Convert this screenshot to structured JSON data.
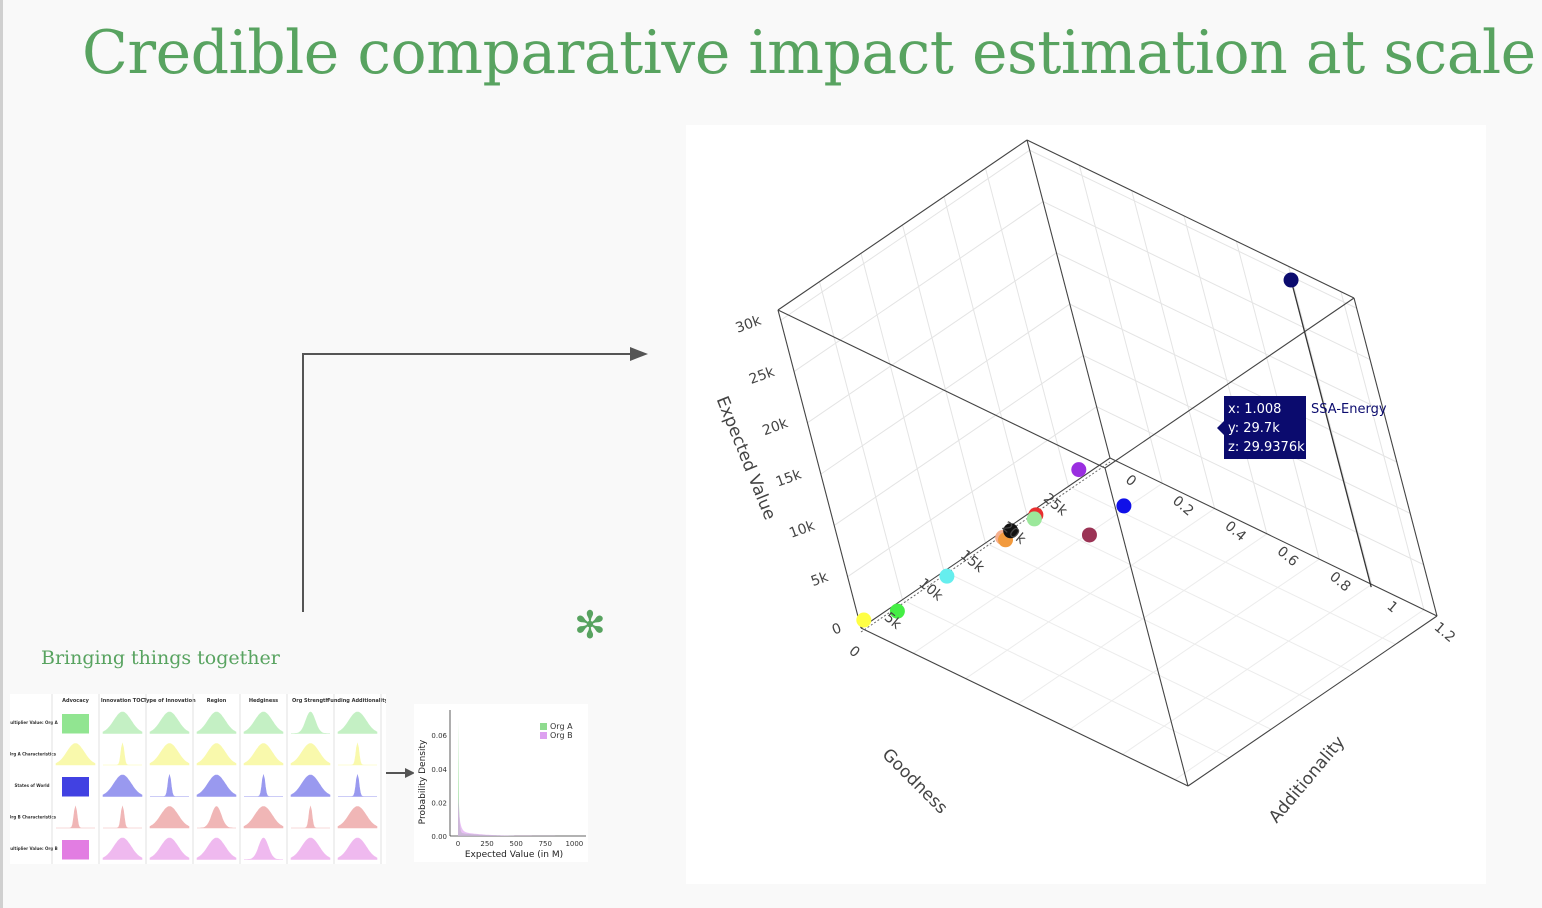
{
  "slide": {
    "title": "Credible comparative impact estimation at scale",
    "subtitle": "Bringing things together",
    "asterisk_glyph": "✻"
  },
  "chart_data": [
    {
      "type": "scatter3d",
      "xlabel": "Additionality",
      "ylabel": "Goodness",
      "zlabel": "Expected Value",
      "x_ticks": [
        "0",
        "0.2",
        "0.4",
        "0.6",
        "0.8",
        "1",
        "1.2"
      ],
      "y_ticks": [
        "0",
        "5k",
        "10k",
        "15k",
        "20k",
        "25k"
      ],
      "z_ticks": [
        "0",
        "5k",
        "10k",
        "15k",
        "20k",
        "25k",
        "30k"
      ],
      "xlim": [
        0,
        1.25
      ],
      "ylim": [
        0,
        30000
      ],
      "zlim": [
        0,
        31000
      ],
      "points": [
        {
          "name": "yellow",
          "color": "#ffff44",
          "x": 0.0,
          "y": 500,
          "z": 500
        },
        {
          "name": "green",
          "color": "#44ee44",
          "x": 0.05,
          "y": 3000,
          "z": 600
        },
        {
          "name": "cyan",
          "color": "#66eeee",
          "x": 0.05,
          "y": 9000,
          "z": 700
        },
        {
          "name": "peach",
          "color": "#f5b08f",
          "x": 0.06,
          "y": 15500,
          "z": 1000
        },
        {
          "name": "orange",
          "color": "#f29a3d",
          "x": 0.07,
          "y": 15500,
          "z": 900
        },
        {
          "name": "black",
          "color": "#111111",
          "x": 0.06,
          "y": 16500,
          "z": 1100
        },
        {
          "name": "red",
          "color": "#e83030",
          "x": 0.06,
          "y": 19500,
          "z": 1000
        },
        {
          "name": "light green",
          "color": "#9be89b",
          "x": 0.07,
          "y": 19000,
          "z": 1000
        },
        {
          "name": "purple",
          "color": "#9a2ee0",
          "x": 0.0,
          "y": 26500,
          "z": 800
        },
        {
          "name": "maroon",
          "color": "#9b3355",
          "x": 0.25,
          "y": 20000,
          "z": 1100
        },
        {
          "name": "blue",
          "color": "#1010e8",
          "x": 0.22,
          "y": 25000,
          "z": 800
        },
        {
          "name": "SSA-Energy",
          "color": "#0b0b6e",
          "x": 1.008,
          "y": 29700,
          "z": 29937.6
        }
      ],
      "tooltip": {
        "x_label": "x: 1.008",
        "y_label": "y: 29.7k",
        "z_label": "z: 29.9376k",
        "series_name": "SSA-Energy",
        "bg_color": "#0b0b6e"
      }
    },
    {
      "type": "grid-of-distributions",
      "column_headers": [
        "Advocacy",
        "Innovation TOC",
        "Type of Innovation",
        "Region",
        "Hedginess",
        "Org Strength",
        "Funding Additionality"
      ],
      "row_headers": [
        "Multiplier Value: Org A",
        "Org A Characteristics",
        "States of World",
        "Org B Characteristics",
        "Multiplier Value: Org B"
      ],
      "row_colors": [
        "#7ee07e",
        "#f2f24a",
        "#2020dd",
        "#e06060",
        "#dd66dd"
      ]
    },
    {
      "type": "density",
      "xlabel": "Expected Value (in M)",
      "ylabel": "Probability Density",
      "x_ticks": [
        "0",
        "250",
        "500",
        "750",
        "1000"
      ],
      "y_ticks": [
        "0.00",
        "0.02",
        "0.04",
        "0.06"
      ],
      "legend": [
        {
          "label": "Org A",
          "color": "#8fdb8f"
        },
        {
          "label": "Org B",
          "color": "#dda0f0"
        }
      ]
    }
  ]
}
